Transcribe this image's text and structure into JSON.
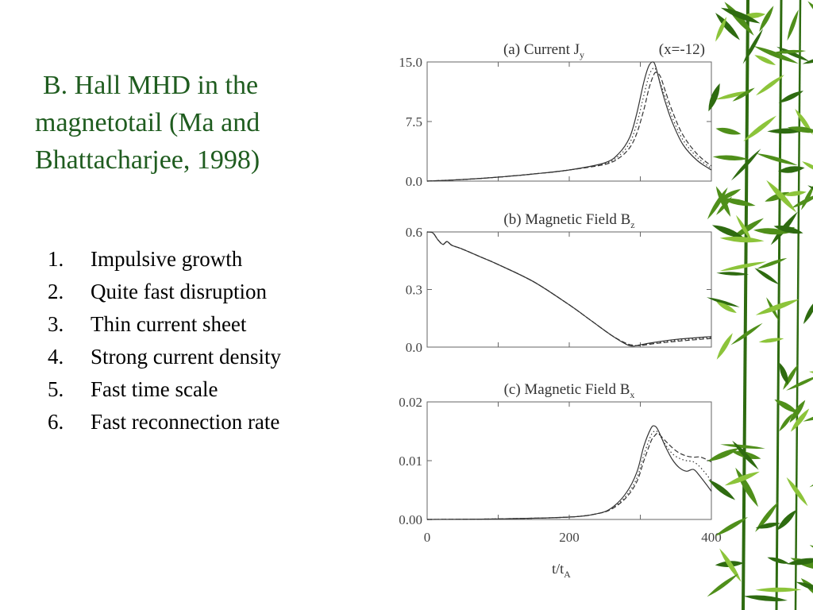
{
  "slide": {
    "title_lines": [
      "B. Hall MHD in the",
      "magnetotail (Ma and",
      "Bhattacharjee, 1998)"
    ],
    "bullets": [
      {
        "num": "1.",
        "text": "Impulsive growth"
      },
      {
        "num": "2.",
        "text": "Quite fast disruption"
      },
      {
        "num": "3.",
        "text": "Thin current sheet"
      },
      {
        "num": "4.",
        "text": "Strong current density"
      },
      {
        "num": "5.",
        "text": "Fast time scale"
      },
      {
        "num": "6.",
        "text": "Fast reconnection rate"
      }
    ]
  },
  "colors": {
    "title": "#1f5c1f",
    "bamboo_dark": "#2e6b10",
    "bamboo_mid": "#4f8f1a",
    "bamboo_light": "#8cc43a",
    "plot_line": "#333333"
  },
  "chart_data": [
    {
      "type": "line",
      "title": "(a) Current J",
      "title_sub": "y",
      "annotation": "(x=-12)",
      "x": [
        0,
        50,
        100,
        150,
        200,
        250,
        270,
        285,
        295,
        305,
        312,
        318,
        322,
        328,
        335,
        345,
        360,
        380,
        400
      ],
      "series": [
        {
          "dash": "solid",
          "values": [
            0,
            0.2,
            0.5,
            0.9,
            1.4,
            2.3,
            3.5,
            5.5,
            8.5,
            12.5,
            14.5,
            15.0,
            14.3,
            12.2,
            10.0,
            7.4,
            4.6,
            2.6,
            1.4
          ]
        },
        {
          "dash": "dotted",
          "values": [
            0,
            0.2,
            0.5,
            0.9,
            1.4,
            2.2,
            3.2,
            4.8,
            7.2,
            10.8,
            13.2,
            14.2,
            14.0,
            12.4,
            10.6,
            8.0,
            5.2,
            3.0,
            1.6
          ]
        },
        {
          "dash": "dashed",
          "values": [
            0,
            0.2,
            0.5,
            0.9,
            1.4,
            2.1,
            2.9,
            4.2,
            6.0,
            9.0,
            11.6,
            13.2,
            13.7,
            13.2,
            11.4,
            8.8,
            5.8,
            3.4,
            1.9
          ]
        }
      ],
      "ylim": [
        0,
        15
      ],
      "xlim": [
        0,
        400
      ],
      "yticks": [
        "0.0",
        "7.5",
        "15.0"
      ],
      "ytick_values": [
        0,
        7.5,
        15
      ]
    },
    {
      "type": "line",
      "title": "(b) Magnetic Field B",
      "title_sub": "z",
      "annotation": "",
      "x": [
        0,
        8,
        15,
        22,
        28,
        35,
        50,
        75,
        100,
        150,
        200,
        230,
        260,
        280,
        290,
        300,
        320,
        350,
        400
      ],
      "series": [
        {
          "dash": "solid",
          "values": [
            0.6,
            0.595,
            0.56,
            0.535,
            0.55,
            0.53,
            0.51,
            0.47,
            0.43,
            0.34,
            0.22,
            0.14,
            0.06,
            0.015,
            0.005,
            0.012,
            0.025,
            0.04,
            0.055
          ]
        },
        {
          "dash": "dotted",
          "values": [
            0.6,
            0.595,
            0.56,
            0.535,
            0.55,
            0.53,
            0.51,
            0.47,
            0.43,
            0.34,
            0.22,
            0.14,
            0.06,
            0.017,
            0.008,
            0.01,
            0.02,
            0.035,
            0.05
          ]
        },
        {
          "dash": "dashed",
          "values": [
            0.6,
            0.595,
            0.56,
            0.535,
            0.55,
            0.53,
            0.51,
            0.47,
            0.43,
            0.34,
            0.22,
            0.14,
            0.06,
            0.02,
            0.01,
            0.008,
            0.018,
            0.03,
            0.045
          ]
        }
      ],
      "ylim": [
        0,
        0.6
      ],
      "xlim": [
        0,
        400
      ],
      "yticks": [
        "0.0",
        "0.3",
        "0.6"
      ],
      "ytick_values": [
        0,
        0.3,
        0.6
      ]
    },
    {
      "type": "line",
      "title": "(c) Magnetic Field B",
      "title_sub": "x",
      "annotation": "",
      "x": [
        0,
        100,
        200,
        240,
        260,
        280,
        295,
        305,
        315,
        320,
        325,
        335,
        345,
        355,
        365,
        375,
        385,
        400
      ],
      "series": [
        {
          "dash": "solid",
          "values": [
            0,
            0.0001,
            0.0004,
            0.001,
            0.002,
            0.0045,
            0.008,
            0.0125,
            0.0155,
            0.0159,
            0.0152,
            0.0125,
            0.0102,
            0.0088,
            0.0082,
            0.0085,
            0.0072,
            0.0048
          ]
        },
        {
          "dash": "dotted",
          "values": [
            0,
            0.0001,
            0.0004,
            0.001,
            0.0019,
            0.004,
            0.007,
            0.011,
            0.0143,
            0.015,
            0.0148,
            0.0128,
            0.0112,
            0.0104,
            0.01,
            0.0098,
            0.0088,
            0.0066
          ]
        },
        {
          "dash": "dashed",
          "values": [
            0,
            0.0001,
            0.0004,
            0.001,
            0.0018,
            0.0037,
            0.0064,
            0.01,
            0.0133,
            0.0142,
            0.0146,
            0.0134,
            0.0122,
            0.0113,
            0.0108,
            0.0106,
            0.0106,
            0.0098
          ]
        }
      ],
      "ylim": [
        0,
        0.02
      ],
      "xlim": [
        0,
        400
      ],
      "yticks": [
        "0.00",
        "0.01",
        "0.02"
      ],
      "ytick_values": [
        0,
        0.01,
        0.02
      ],
      "xticks": [
        "0",
        "200",
        "400"
      ],
      "xtick_values": [
        0,
        200,
        400
      ],
      "xlabel": "t/t",
      "xlabel_sub": "A"
    }
  ]
}
